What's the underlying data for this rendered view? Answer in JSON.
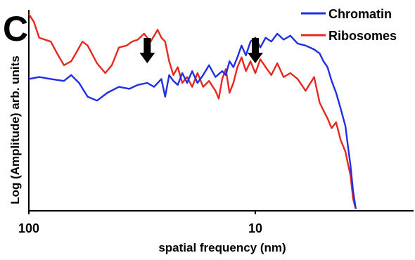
{
  "panel_label": "C",
  "colors": {
    "chromatin": "#1f2fe6",
    "ribosomes": "#e8281e",
    "arrow": "#000000",
    "axis": "#000000"
  },
  "chart_data": {
    "type": "line",
    "title": "",
    "xlabel": "spatial frequency (nm)",
    "ylabel": "Log (Amplitude) arb. units",
    "x_scale": "log",
    "x_direction": "decreasing to the right",
    "xlim": [
      100,
      2
    ],
    "x_ticks": [
      100,
      10
    ],
    "x_tick_labels": [
      "100",
      "10"
    ],
    "ylim": [
      0,
      10
    ],
    "y_ticks_shown": false,
    "grid": false,
    "legend_position": "top-right",
    "series": [
      {
        "name": "Chromatin",
        "color": "#1f2fe6",
        "x": [
          100,
          90,
          80,
          70,
          65,
          60,
          55,
          50,
          45,
          40,
          36,
          33,
          30,
          28,
          26,
          25,
          24,
          23,
          22,
          21,
          20,
          19,
          18,
          17,
          16,
          15,
          14,
          13.5,
          13,
          12.5,
          12,
          11.5,
          11,
          10.5,
          10,
          9.5,
          9,
          8.5,
          8,
          7.5,
          7,
          6.5,
          6,
          5.5,
          5.2,
          5,
          4.8,
          4.6,
          4.4,
          4.2,
          4.0,
          3.9,
          3.8,
          3.7,
          3.6
        ],
        "y": [
          6.7,
          6.8,
          6.7,
          6.6,
          6.9,
          6.5,
          5.8,
          5.6,
          6.0,
          6.3,
          6.2,
          6.4,
          6.5,
          6.3,
          6.7,
          5.8,
          6.9,
          6.6,
          6.4,
          7.0,
          6.5,
          7.1,
          6.5,
          6.9,
          7.4,
          6.8,
          7.1,
          6.9,
          7.6,
          7.3,
          7.8,
          8.4,
          7.9,
          8.6,
          8.8,
          8.3,
          8.8,
          8.6,
          9.0,
          8.7,
          8.9,
          8.5,
          8.4,
          8.2,
          8.0,
          7.6,
          7.3,
          6.6,
          6.0,
          5.2,
          4.3,
          3.3,
          2.3,
          1.0,
          0.1
        ]
      },
      {
        "name": "Ribosomes",
        "color": "#e8281e",
        "x": [
          100,
          95,
          90,
          85,
          80,
          75,
          70,
          65,
          62,
          58,
          55,
          50,
          46,
          43,
          40,
          37,
          35,
          33,
          31,
          29,
          27,
          26,
          25,
          24,
          23,
          22,
          21,
          20,
          19,
          18,
          17,
          16,
          15,
          14.5,
          14,
          13.5,
          13,
          12.5,
          12,
          11.5,
          11,
          10.5,
          10,
          9.5,
          9,
          8.5,
          8,
          7.5,
          7,
          6.5,
          6,
          5.5,
          5.2,
          5,
          4.8,
          4.6,
          4.4,
          4.2,
          4.0,
          3.9,
          3.8,
          3.7,
          3.6
        ],
        "y": [
          10.0,
          9.6,
          8.8,
          8.7,
          8.6,
          8.0,
          7.4,
          7.6,
          8.0,
          8.6,
          8.4,
          7.5,
          7.0,
          7.4,
          8.3,
          8.4,
          8.6,
          8.7,
          9.0,
          8.6,
          9.2,
          8.8,
          8.6,
          7.6,
          6.9,
          7.3,
          6.5,
          6.8,
          6.3,
          7.0,
          6.3,
          6.6,
          6.1,
          5.7,
          6.7,
          7.2,
          6.0,
          6.5,
          7.3,
          7.8,
          7.1,
          7.6,
          7.0,
          7.7,
          7.3,
          6.9,
          7.5,
          6.8,
          7.0,
          6.7,
          6.1,
          6.8,
          5.5,
          5.1,
          4.7,
          4.2,
          4.5,
          3.6,
          3.0,
          2.4,
          1.8,
          0.6,
          0.1
        ]
      }
    ],
    "annotations": [
      {
        "type": "arrow",
        "direction": "down",
        "x": 30
      },
      {
        "type": "arrow",
        "direction": "down",
        "x": 10
      }
    ]
  }
}
